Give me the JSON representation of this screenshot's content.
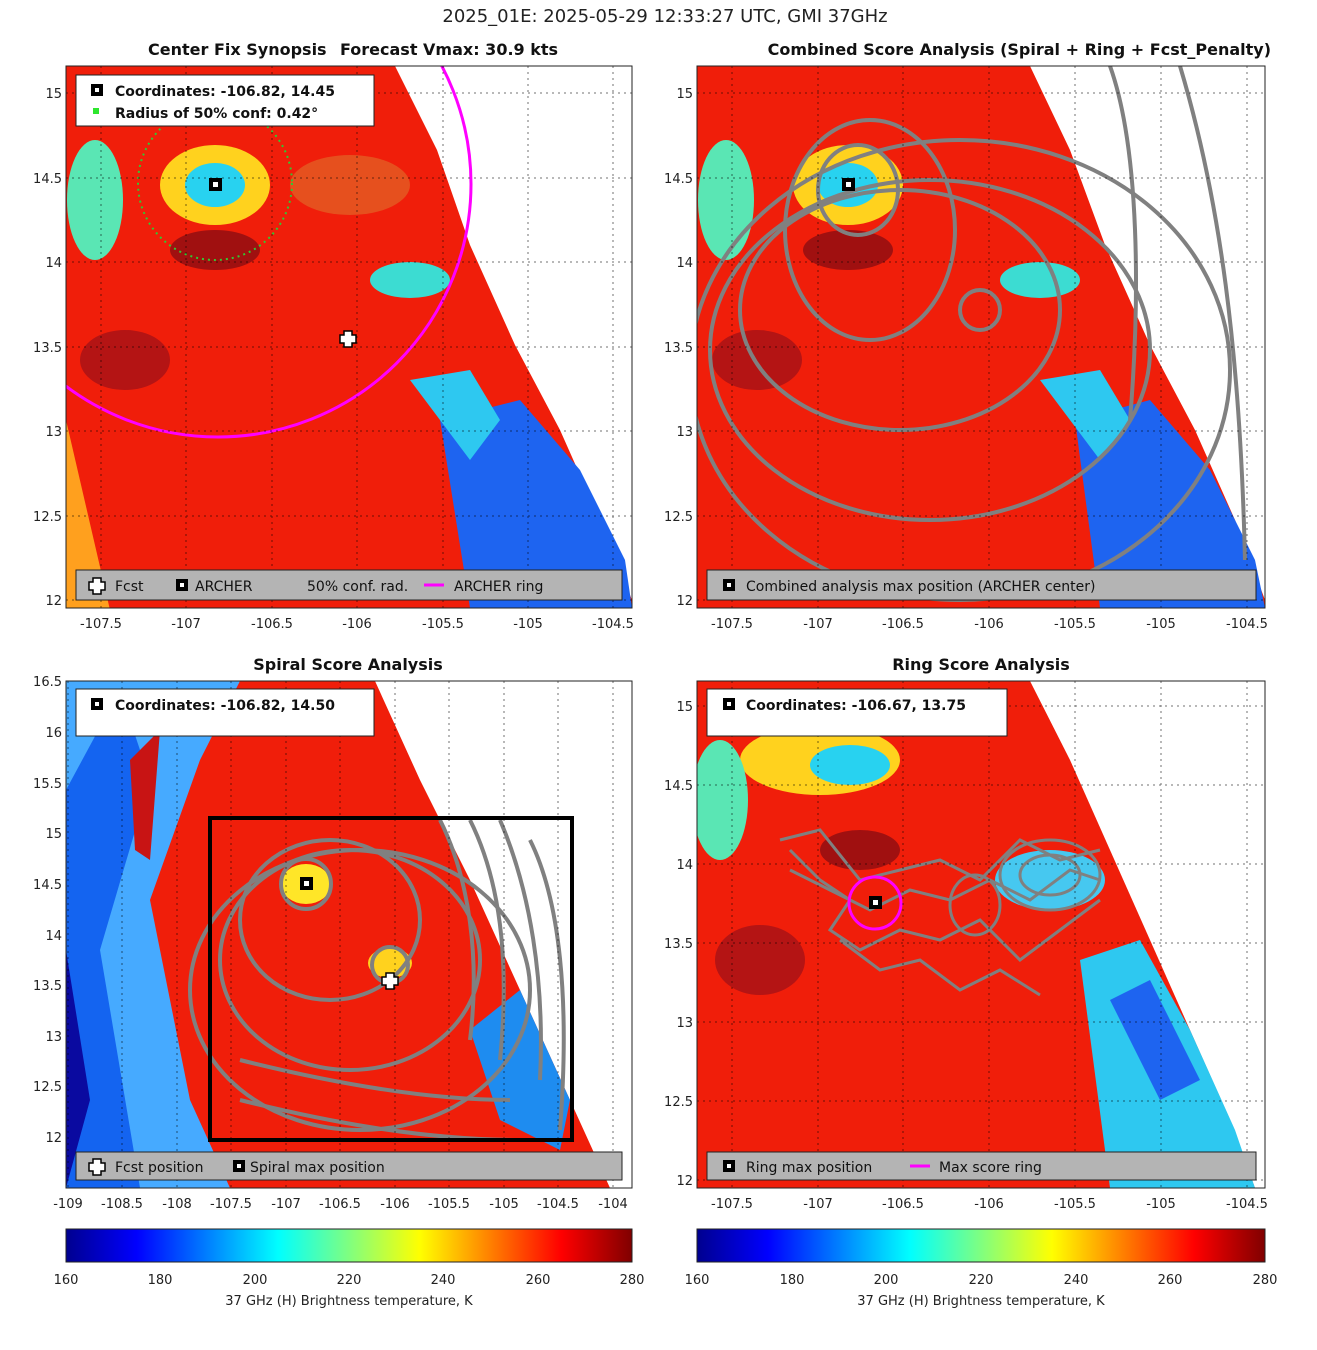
{
  "title": "2025_01E: 2025-05-29 12:33:27 UTC, GMI 37GHz",
  "colormap": {
    "name": "jet",
    "min": 160,
    "max": 280,
    "ticks": [
      160,
      180,
      200,
      220,
      240,
      260,
      280
    ],
    "label": "37 GHz (H) Brightness temperature, K"
  },
  "panels": {
    "p1": {
      "title_left": "Center Fix Synopsis",
      "title_right": "Forecast Vmax: 30.9 kts",
      "info_coords": "Coordinates: -106.82, 14.45",
      "info_radius": "Radius of 50% conf: 0.42°",
      "legend": [
        "Fcst",
        "ARCHER",
        "50% conf. rad.",
        "ARCHER ring"
      ],
      "xticks": [
        "-107.5",
        "-107",
        "-106.5",
        "-106",
        "-105.5",
        "-105",
        "-104.5"
      ],
      "yticks": [
        "12",
        "12.5",
        "13",
        "13.5",
        "14",
        "14.5",
        "15"
      ]
    },
    "p2": {
      "title": "Combined Score Analysis (Spiral + Ring + Fcst_Penalty)",
      "legend": [
        "Combined analysis max position (ARCHER center)"
      ],
      "xticks": [
        "-107.5",
        "-107",
        "-106.5",
        "-106",
        "-105.5",
        "-105",
        "-104.5"
      ],
      "yticks": [
        "12",
        "12.5",
        "13",
        "13.5",
        "14",
        "14.5",
        "15"
      ]
    },
    "p3": {
      "title": "Spiral Score Analysis",
      "info_coords": "Coordinates: -106.82, 14.50",
      "legend": [
        "Fcst position",
        "Spiral max position"
      ],
      "xticks": [
        "-109",
        "-108.5",
        "-108",
        "-107.5",
        "-107",
        "-106.5",
        "-106",
        "-105.5",
        "-105",
        "-104.5",
        "-104"
      ],
      "yticks": [
        "12",
        "12.5",
        "13",
        "13.5",
        "14",
        "14.5",
        "15",
        "15.5",
        "16",
        "16.5"
      ]
    },
    "p4": {
      "title": "Ring Score Analysis",
      "info_coords": "Coordinates: -106.67, 13.75",
      "legend": [
        "Ring max position",
        "Max score ring"
      ],
      "xticks": [
        "-107.5",
        "-107",
        "-106.5",
        "-106",
        "-105.5",
        "-105",
        "-104.5"
      ],
      "yticks": [
        "12",
        "12.5",
        "13",
        "13.5",
        "14",
        "14.5",
        "15"
      ]
    }
  },
  "chart_data": [
    {
      "type": "heatmap",
      "title": "Center Fix Synopsis   Forecast Vmax: 30.9 kts",
      "xlim": [
        -107.7,
        -104.4
      ],
      "ylim": [
        11.95,
        15.15
      ],
      "archer_center": [
        -106.82,
        14.45
      ],
      "forecast_position": [
        -106.05,
        13.55
      ],
      "conf_radius_deg": 0.42,
      "archer_ring": {
        "center": [
          -106.82,
          14.45
        ],
        "radius_deg": 1.48
      }
    },
    {
      "type": "heatmap",
      "title": "Combined Score Analysis (Spiral + Ring + Fcst_Penalty)",
      "xlim": [
        -107.7,
        -104.4
      ],
      "ylim": [
        11.95,
        15.15
      ],
      "max_position": [
        -106.82,
        14.45
      ]
    },
    {
      "type": "heatmap",
      "title": "Spiral Score Analysis",
      "xlim": [
        -109.05,
        -103.85
      ],
      "ylim": [
        11.5,
        16.5
      ],
      "max_position": [
        -106.82,
        14.5
      ],
      "forecast_position": [
        -106.05,
        13.55
      ],
      "search_box": {
        "x": [
          -107.75,
          -104.45
        ],
        "y": [
          11.95,
          15.15
        ]
      }
    },
    {
      "type": "heatmap",
      "title": "Ring Score Analysis",
      "xlim": [
        -107.7,
        -104.4
      ],
      "ylim": [
        11.95,
        15.15
      ],
      "max_position": [
        -106.67,
        13.75
      ],
      "max_score_ring_radius_deg": 0.16
    }
  ]
}
